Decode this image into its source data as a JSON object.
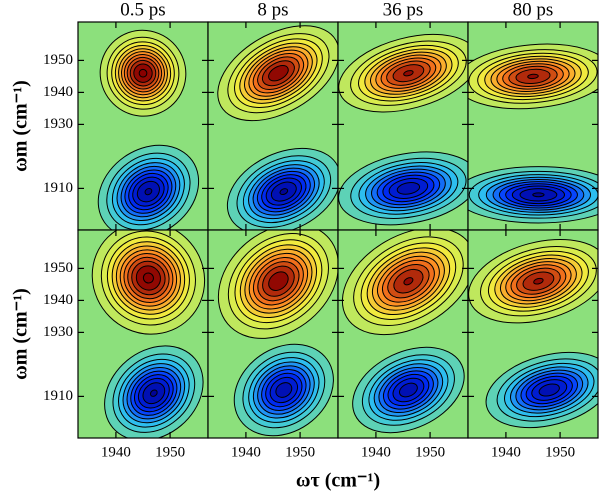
{
  "chart_data": {
    "type": "contour-grid",
    "xlabel": "ωτ (cm⁻¹)",
    "ylabel": "ωm (cm⁻¹)",
    "xlim": [
      1933,
      1957
    ],
    "ylim": [
      1897,
      1962
    ],
    "xticks": [
      1940,
      1950
    ],
    "yticks": [
      1950,
      1940,
      1930,
      1910
    ],
    "colormap": [
      "#00008f",
      "#0030ff",
      "#2fc4ee",
      "#8ce07c",
      "#f0f040",
      "#ff8020",
      "#8a0000"
    ],
    "panels": [
      {
        "title": "0.5 ps",
        "peaks": [
          {
            "x": 1945,
            "y": 1946,
            "amplitude": 1,
            "width_x": 3.5,
            "width_y": 6,
            "tilt": 40
          },
          {
            "x": 1946,
            "y": 1909,
            "amplitude": -0.9,
            "width_x": 4.5,
            "width_y": 6,
            "tilt": 35
          }
        ]
      },
      {
        "title": "8 ps",
        "peaks": [
          {
            "x": 1946,
            "y": 1946,
            "amplitude": 0.95,
            "width_x": 5.5,
            "width_y": 5.5,
            "tilt": 30
          },
          {
            "x": 1947,
            "y": 1909,
            "amplitude": -0.9,
            "width_x": 5,
            "width_y": 5.5,
            "tilt": 25
          }
        ]
      },
      {
        "title": "36 ps",
        "peaks": [
          {
            "x": 1946,
            "y": 1946,
            "amplitude": 0.9,
            "width_x": 6,
            "width_y": 5,
            "tilt": 15
          },
          {
            "x": 1946,
            "y": 1910,
            "amplitude": -0.85,
            "width_x": 6,
            "width_y": 5,
            "tilt": 10
          }
        ]
      },
      {
        "title": "80 ps",
        "peaks": [
          {
            "x": 1945,
            "y": 1945,
            "amplitude": 0.9,
            "width_x": 6.5,
            "width_y": 4.5,
            "tilt": 5
          },
          {
            "x": 1946,
            "y": 1908,
            "amplitude": -0.9,
            "width_x": 7,
            "width_y": 4,
            "tilt": 0
          }
        ]
      },
      {
        "peaks": [
          {
            "x": 1946,
            "y": 1947,
            "amplitude": 1,
            "width_x": 4.5,
            "width_y": 8,
            "tilt": 45
          },
          {
            "x": 1947,
            "y": 1911,
            "amplitude": -0.9,
            "width_x": 4.5,
            "width_y": 6,
            "tilt": 40
          }
        ]
      },
      {
        "peaks": [
          {
            "x": 1946,
            "y": 1946,
            "amplitude": 0.95,
            "width_x": 5.5,
            "width_y": 7,
            "tilt": 40
          },
          {
            "x": 1947,
            "y": 1912,
            "amplitude": -0.85,
            "width_x": 4.5,
            "width_y": 6,
            "tilt": 35
          }
        ]
      },
      {
        "peaks": [
          {
            "x": 1946,
            "y": 1946,
            "amplitude": 0.9,
            "width_x": 6,
            "width_y": 6.5,
            "tilt": 30
          },
          {
            "x": 1946,
            "y": 1912,
            "amplitude": -0.85,
            "width_x": 5,
            "width_y": 5.5,
            "tilt": 25
          }
        ]
      },
      {
        "peaks": [
          {
            "x": 1946,
            "y": 1946,
            "amplitude": 0.9,
            "width_x": 6,
            "width_y": 5.5,
            "tilt": 15
          },
          {
            "x": 1948,
            "y": 1912,
            "amplitude": -0.85,
            "width_x": 5.5,
            "width_y": 5,
            "tilt": 15
          }
        ]
      }
    ]
  }
}
